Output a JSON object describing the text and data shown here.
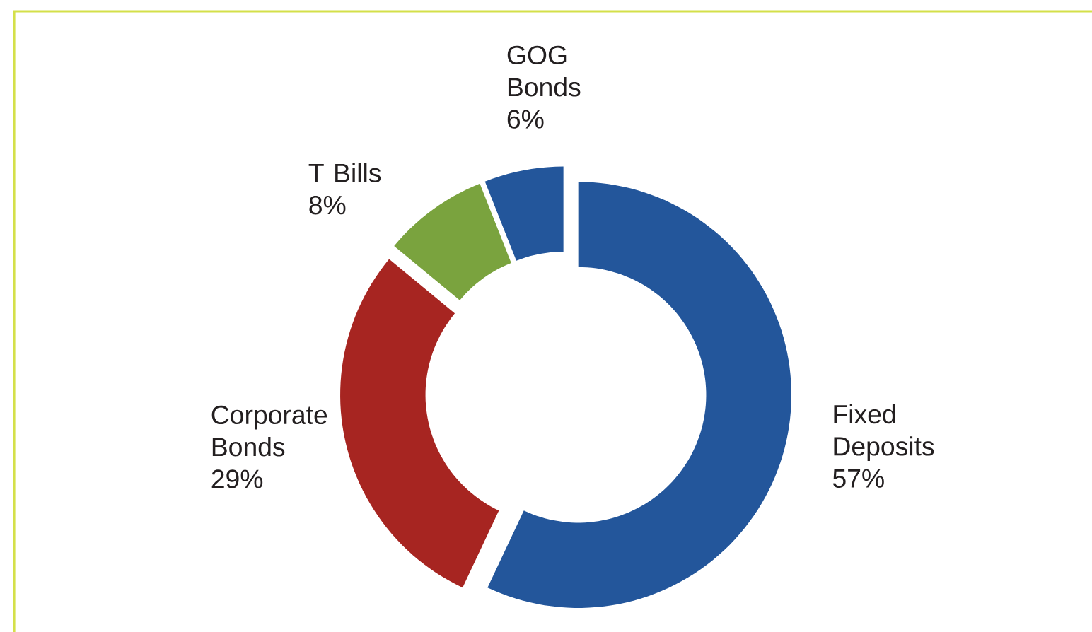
{
  "chart_data": {
    "type": "donut",
    "categories": [
      "Fixed Deposits",
      "Corporate Bonds",
      "T Bills",
      "GOG Bonds"
    ],
    "values": [
      57,
      29,
      8,
      6
    ],
    "colors": [
      "#23569b",
      "#a72521",
      "#7aa33e",
      "#23569b"
    ],
    "value_labels": [
      "57%",
      "29%",
      "8%",
      "6%"
    ]
  }
}
